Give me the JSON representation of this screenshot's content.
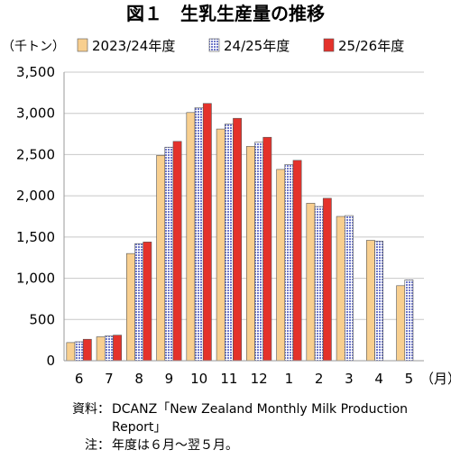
{
  "chart_data": {
    "type": "bar",
    "title": "図１　生乳生産量の推移",
    "ylabel": "（千トン）",
    "xunit": "（月）",
    "ylim": [
      0,
      3500
    ],
    "yticks": [
      0,
      500,
      1000,
      1500,
      2000,
      2500,
      3000,
      3500
    ],
    "ytick_labels": [
      "0",
      "500",
      "1,000",
      "1,500",
      "2,000",
      "2,500",
      "3,000",
      "3,500"
    ],
    "categories": [
      "6",
      "7",
      "8",
      "9",
      "10",
      "11",
      "12",
      "1",
      "2",
      "3",
      "4",
      "5"
    ],
    "legend_position": "top",
    "grid": "horizontal",
    "series": [
      {
        "name": "2023/24年度",
        "color": "#f8cf8f",
        "pattern": "solid",
        "values": [
          220,
          290,
          1300,
          2490,
          3010,
          2810,
          2600,
          2320,
          1910,
          1750,
          1460,
          910
        ]
      },
      {
        "name": "24/25年度",
        "color": "#a6acdf",
        "pattern": "checkered",
        "values": [
          230,
          300,
          1420,
          2590,
          3070,
          2870,
          2650,
          2380,
          1870,
          1760,
          1450,
          980
        ]
      },
      {
        "name": "25/26年度",
        "color": "#e4322b",
        "pattern": "solid",
        "values": [
          260,
          310,
          1440,
          2660,
          3120,
          2940,
          2710,
          2430,
          1970,
          null,
          null,
          null
        ]
      }
    ]
  },
  "notes": {
    "source_label": "資料：",
    "source_text": "DCANZ「New Zealand Monthly Milk Production Report」",
    "note_label": "注：",
    "note_text": "年度は６月～翌５月。"
  }
}
